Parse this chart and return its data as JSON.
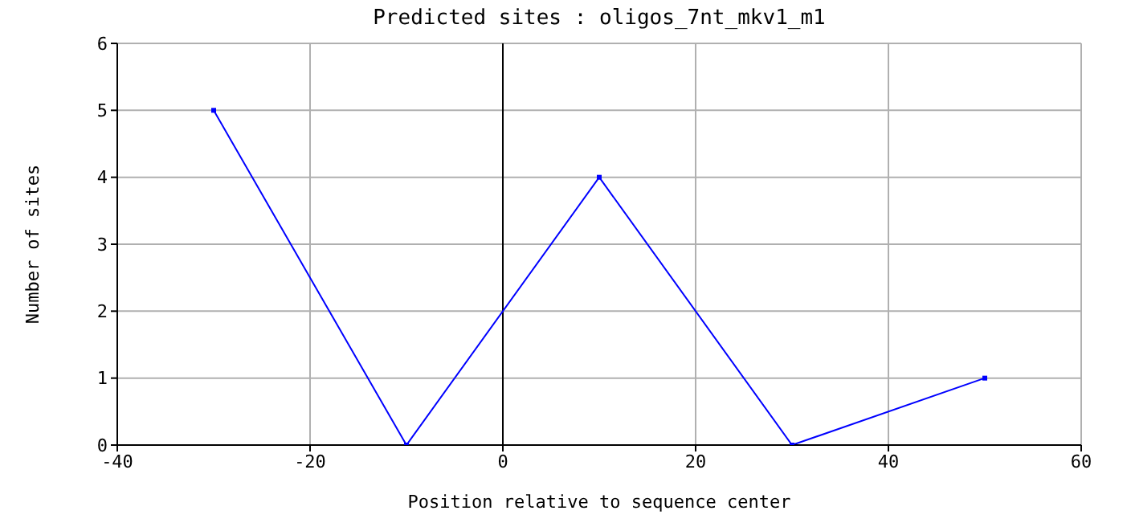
{
  "chart_data": {
    "type": "line",
    "title": "Predicted sites : oligos_7nt_mkv1_m1",
    "xlabel": "Position relative to sequence center",
    "ylabel": "Number of sites",
    "x": [
      -30,
      -10,
      10,
      30,
      50
    ],
    "series": [
      {
        "color": "#0000ff",
        "values": [
          5,
          0,
          4,
          0,
          1
        ]
      }
    ],
    "xlim": [
      -40,
      60
    ],
    "xticks": [
      -40,
      -20,
      0,
      20,
      40,
      60
    ],
    "ylim": [
      0,
      6
    ],
    "yticks": [
      0,
      1,
      2,
      3,
      4,
      5,
      6
    ],
    "grid": true,
    "marker": "square",
    "line_style": "solid",
    "ref_lines": [
      {
        "axis": "x",
        "value": 0,
        "color": "#000000"
      }
    ]
  }
}
